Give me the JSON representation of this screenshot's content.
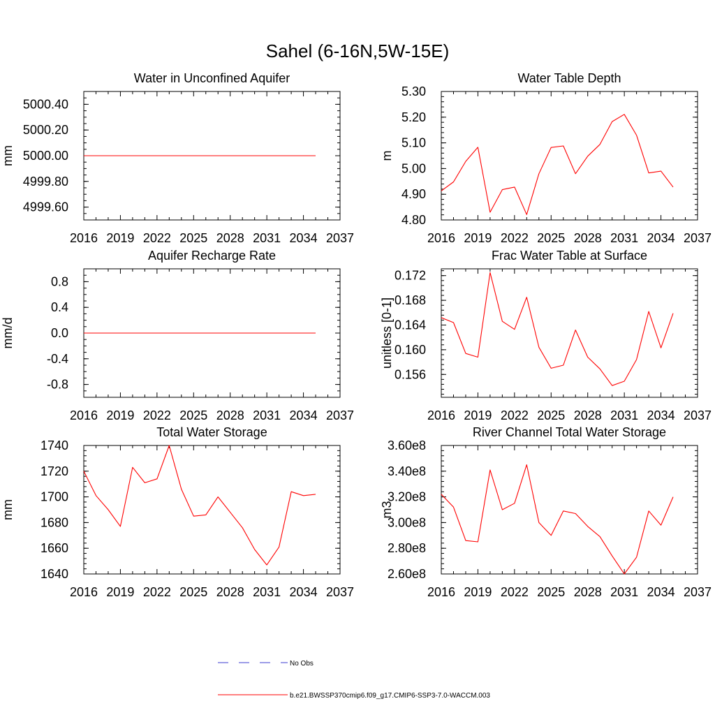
{
  "figure_title": "Sahel (6-16N,5W-15E)",
  "colors": {
    "model": "#ff0000",
    "obs": "#3a3ad0",
    "axis": "#000000"
  },
  "legend": {
    "obs_label": "No Obs",
    "model_label": "b.e21.BWSSP370cmip6.f09_g17.CMIP6-SSP3-7.0-WACCM.003"
  },
  "chart_data": [
    {
      "id": "aquifer",
      "type": "line",
      "title": "Water in Unconfined Aquifer",
      "xlabel": "",
      "ylabel": "mm",
      "xlim": [
        2016,
        2037
      ],
      "ylim": [
        4999.5,
        5000.5
      ],
      "xticks": [
        "2016",
        "2019",
        "2022",
        "2025",
        "2028",
        "2031",
        "2034",
        "2037"
      ],
      "yticks": [
        {
          "v": 4999.6,
          "label": "4999.60"
        },
        {
          "v": 4999.8,
          "label": "4999.80"
        },
        {
          "v": 5000.0,
          "label": "5000.00"
        },
        {
          "v": 5000.2,
          "label": "5000.20"
        },
        {
          "v": 5000.4,
          "label": "5000.40"
        }
      ],
      "minor_step": 0.05,
      "series": [
        {
          "x": [
            2016,
            2017,
            2018,
            2019,
            2020,
            2021,
            2022,
            2023,
            2024,
            2025,
            2026,
            2027,
            2028,
            2029,
            2030,
            2031,
            2032,
            2033,
            2034,
            2035
          ],
          "y": [
            5000,
            5000,
            5000,
            5000,
            5000,
            5000,
            5000,
            5000,
            5000,
            5000,
            5000,
            5000,
            5000,
            5000,
            5000,
            5000,
            5000,
            5000,
            5000,
            5000
          ]
        }
      ]
    },
    {
      "id": "wtd",
      "type": "line",
      "title": "Water Table Depth",
      "xlabel": "",
      "ylabel": "m",
      "xlim": [
        2016,
        2037
      ],
      "ylim": [
        4.8,
        5.3
      ],
      "xticks": [
        "2016",
        "2019",
        "2022",
        "2025",
        "2028",
        "2031",
        "2034",
        "2037"
      ],
      "yticks": [
        {
          "v": 4.8,
          "label": "4.80"
        },
        {
          "v": 4.9,
          "label": "4.90"
        },
        {
          "v": 5.0,
          "label": "5.00"
        },
        {
          "v": 5.1,
          "label": "5.10"
        },
        {
          "v": 5.2,
          "label": "5.20"
        },
        {
          "v": 5.3,
          "label": "5.30"
        }
      ],
      "minor_step": 0.02,
      "series": [
        {
          "x": [
            2016,
            2017,
            2018,
            2019,
            2020,
            2021,
            2022,
            2023,
            2024,
            2025,
            2026,
            2027,
            2028,
            2029,
            2030,
            2031,
            2032,
            2033,
            2034,
            2035
          ],
          "y": [
            4.913,
            4.948,
            5.028,
            5.083,
            4.83,
            4.918,
            4.928,
            4.821,
            4.98,
            5.082,
            5.088,
            4.98,
            5.048,
            5.094,
            5.183,
            5.211,
            5.13,
            4.983,
            4.99,
            4.928
          ]
        }
      ]
    },
    {
      "id": "recharge",
      "type": "line",
      "title": "Aquifer Recharge Rate",
      "xlabel": "",
      "ylabel": "mm/d",
      "xlim": [
        2016,
        2037
      ],
      "ylim": [
        -1.0,
        1.0
      ],
      "xticks": [
        "2016",
        "2019",
        "2022",
        "2025",
        "2028",
        "2031",
        "2034",
        "2037"
      ],
      "yticks": [
        {
          "v": -0.8,
          "label": "-0.8"
        },
        {
          "v": -0.4,
          "label": "-0.4"
        },
        {
          "v": 0.0,
          "label": "0.0"
        },
        {
          "v": 0.4,
          "label": "0.4"
        },
        {
          "v": 0.8,
          "label": "0.8"
        }
      ],
      "minor_step": 0.1,
      "series": [
        {
          "x": [
            2016,
            2017,
            2018,
            2019,
            2020,
            2021,
            2022,
            2023,
            2024,
            2025,
            2026,
            2027,
            2028,
            2029,
            2030,
            2031,
            2032,
            2033,
            2034,
            2035
          ],
          "y": [
            0,
            0,
            0,
            0,
            0,
            0,
            0,
            0,
            0,
            0,
            0,
            0,
            0,
            0,
            0,
            0,
            0,
            0,
            0,
            0
          ]
        }
      ]
    },
    {
      "id": "fwet",
      "type": "line",
      "title": "Frac Water Table at Surface",
      "xlabel": "",
      "ylabel": "unitless [0-1]",
      "xlim": [
        2016,
        2037
      ],
      "ylim": [
        0.1523,
        0.1731
      ],
      "xticks": [
        "2016",
        "2019",
        "2022",
        "2025",
        "2028",
        "2031",
        "2034",
        "2037"
      ],
      "yticks": [
        {
          "v": 0.156,
          "label": "0.156"
        },
        {
          "v": 0.16,
          "label": "0.160"
        },
        {
          "v": 0.164,
          "label": "0.164"
        },
        {
          "v": 0.168,
          "label": "0.168"
        },
        {
          "v": 0.172,
          "label": "0.172"
        }
      ],
      "minor_step": 0.0008,
      "series": [
        {
          "x": [
            2016,
            2017,
            2018,
            2019,
            2020,
            2021,
            2022,
            2023,
            2024,
            2025,
            2026,
            2027,
            2028,
            2029,
            2030,
            2031,
            2032,
            2033,
            2034,
            2035
          ],
          "y": [
            0.1652,
            0.1644,
            0.1594,
            0.1588,
            0.1725,
            0.1646,
            0.1633,
            0.1685,
            0.1604,
            0.157,
            0.1575,
            0.1632,
            0.1588,
            0.1569,
            0.1542,
            0.1549,
            0.1584,
            0.1662,
            0.1603,
            0.1659
          ]
        }
      ]
    },
    {
      "id": "tws",
      "type": "line",
      "title": "Total Water Storage",
      "xlabel": "",
      "ylabel": "mm",
      "xlim": [
        2016,
        2037
      ],
      "ylim": [
        1640,
        1740
      ],
      "xticks": [
        "2016",
        "2019",
        "2022",
        "2025",
        "2028",
        "2031",
        "2034",
        "2037"
      ],
      "yticks": [
        {
          "v": 1640,
          "label": "1640"
        },
        {
          "v": 1660,
          "label": "1660"
        },
        {
          "v": 1680,
          "label": "1680"
        },
        {
          "v": 1700,
          "label": "1700"
        },
        {
          "v": 1720,
          "label": "1720"
        },
        {
          "v": 1740,
          "label": "1740"
        }
      ],
      "minor_step": 4,
      "series": [
        {
          "x": [
            2016,
            2017,
            2018,
            2019,
            2020,
            2021,
            2022,
            2023,
            2024,
            2025,
            2026,
            2027,
            2028,
            2029,
            2030,
            2031,
            2032,
            2033,
            2034,
            2035
          ],
          "y": [
            1720,
            1701,
            1690,
            1677,
            1723,
            1711,
            1714,
            1740,
            1706,
            1685,
            1686,
            1700,
            1688,
            1676,
            1659,
            1647,
            1661,
            1704,
            1701,
            1702
          ]
        }
      ]
    },
    {
      "id": "river",
      "type": "line",
      "title": "River Channel Total Water Storage",
      "xlabel": "",
      "ylabel": "m3",
      "xlim": [
        2016,
        2037
      ],
      "ylim": [
        260000000,
        360000000
      ],
      "xticks": [
        "2016",
        "2019",
        "2022",
        "2025",
        "2028",
        "2031",
        "2034",
        "2037"
      ],
      "yticks": [
        {
          "v": 260000000,
          "label": "2.60e8"
        },
        {
          "v": 280000000,
          "label": "2.80e8"
        },
        {
          "v": 300000000,
          "label": "3.00e8"
        },
        {
          "v": 320000000,
          "label": "3.20e8"
        },
        {
          "v": 340000000,
          "label": "3.40e8"
        },
        {
          "v": 360000000,
          "label": "3.60e8"
        }
      ],
      "minor_step": 4000000,
      "series": [
        {
          "x": [
            2016,
            2017,
            2018,
            2019,
            2020,
            2021,
            2022,
            2023,
            2024,
            2025,
            2026,
            2027,
            2028,
            2029,
            2030,
            2031,
            2032,
            2033,
            2034,
            2035
          ],
          "y": [
            322000000,
            312000000,
            286000000,
            285000000,
            341000000,
            310000000,
            315000000,
            345000000,
            300000000,
            290000000,
            309000000,
            307000000,
            297000000,
            289000000,
            274000000,
            260000000,
            273000000,
            309000000,
            298000000,
            320000000
          ]
        }
      ]
    }
  ]
}
